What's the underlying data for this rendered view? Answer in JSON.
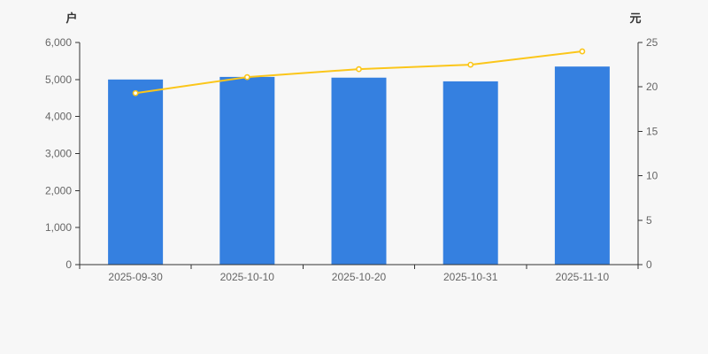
{
  "page": {
    "background_color": "#f7f7f7"
  },
  "chart_data": {
    "type": "bar",
    "subtype": "bar+line dual axis combo",
    "title": "",
    "categories": [
      "2025-09-30",
      "2025-10-10",
      "2025-10-20",
      "2025-10-31",
      "2025-11-10"
    ],
    "series": [
      {
        "name": "户",
        "type": "bar",
        "axis": "left",
        "unit": "户",
        "color": "#3580e0",
        "values": [
          5000,
          5070,
          5050,
          4950,
          5350
        ]
      },
      {
        "name": "元",
        "type": "line",
        "axis": "right",
        "unit": "元",
        "color": "#fbc61a",
        "marker": "hollow-circle",
        "marker_fill": "#ffffff",
        "values": [
          19.3,
          21.1,
          22.0,
          22.5,
          24.0
        ]
      }
    ],
    "left_axis": {
      "name": "户",
      "min": 0,
      "max": 6000,
      "step": 1000,
      "tick_labels": [
        "0",
        "1,000",
        "2,000",
        "3,000",
        "4,000",
        "5,000",
        "6,000"
      ]
    },
    "right_axis": {
      "name": "元",
      "min": 0,
      "max": 25,
      "step": 5,
      "tick_labels": [
        "0",
        "5",
        "10",
        "15",
        "20",
        "25"
      ]
    },
    "x_axis": {
      "tick_labels": [
        "2025-09-30",
        "2025-10-10",
        "2025-10-20",
        "2025-10-31",
        "2025-11-10"
      ]
    },
    "legend": "none",
    "grid": false,
    "axis_line_color": "#333333",
    "tick_label_color": "#666666"
  }
}
